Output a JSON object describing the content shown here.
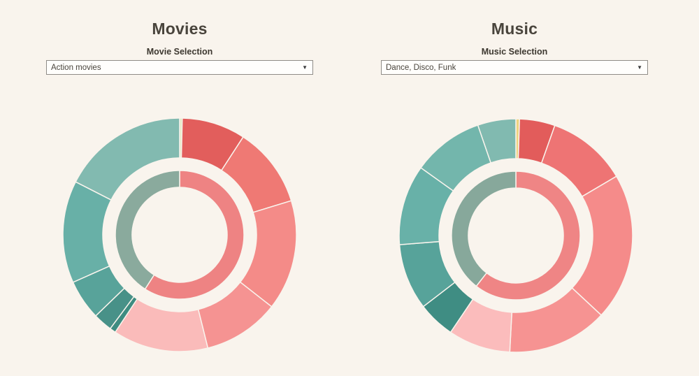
{
  "background_color": "#f9f4ed",
  "separator_color": "#f9f4ed",
  "panels": [
    {
      "title": "Movies",
      "selector_label": "Movie Selection",
      "selector_value": "Action movies",
      "dropdown_arrow_icon": "▼"
    },
    {
      "title": "Music",
      "selector_label": "Music Selection",
      "selector_value": "Dance, Disco, Funk",
      "dropdown_arrow_icon": "▼"
    }
  ],
  "chart_data": [
    {
      "type": "sunburst",
      "id": "movies",
      "title": "Movies",
      "selection": "Action movies",
      "angle_units": "degrees clockwise from 12 o'clock",
      "rings": {
        "outer": [
          {
            "name": "sliver-green",
            "start_deg": 0,
            "end_deg": 1.3,
            "share_pct": 0.4,
            "color": "#e3e8c0"
          },
          {
            "name": "dark-red",
            "start_deg": 1.3,
            "end_deg": 33,
            "share_pct": 8.8,
            "color": "#e25e5c"
          },
          {
            "name": "red",
            "start_deg": 33,
            "end_deg": 73,
            "share_pct": 11.1,
            "color": "#ef7974"
          },
          {
            "name": "salmon-a",
            "start_deg": 73,
            "end_deg": 128,
            "share_pct": 15.3,
            "color": "#f48b88"
          },
          {
            "name": "salmon-b",
            "start_deg": 128,
            "end_deg": 166,
            "share_pct": 10.6,
            "color": "#f59392"
          },
          {
            "name": "light-pink",
            "start_deg": 166,
            "end_deg": 213.5,
            "share_pct": 13.2,
            "color": "#fabbba"
          },
          {
            "name": "teal-sliver",
            "start_deg": 213.5,
            "end_deg": 216.5,
            "share_pct": 0.8,
            "color": "#3e8c81"
          },
          {
            "name": "dark-teal",
            "start_deg": 216.5,
            "end_deg": 226,
            "share_pct": 2.6,
            "color": "#489188"
          },
          {
            "name": "teal-a",
            "start_deg": 226,
            "end_deg": 246,
            "share_pct": 5.6,
            "color": "#58a39a"
          },
          {
            "name": "teal-b",
            "start_deg": 246,
            "end_deg": 297,
            "share_pct": 14.2,
            "color": "#68b0a7"
          },
          {
            "name": "sage-teal",
            "start_deg": 297,
            "end_deg": 360,
            "share_pct": 17.5,
            "color": "#82bab0"
          }
        ],
        "inner": [
          {
            "name": "pink-group",
            "start_deg": 0,
            "end_deg": 212.5,
            "share_pct": 59.0,
            "color": "#ee8383"
          },
          {
            "name": "teal-group",
            "start_deg": 212.5,
            "end_deg": 360,
            "share_pct": 41.0,
            "color": "#8aaa9d"
          }
        ]
      }
    },
    {
      "type": "sunburst",
      "id": "music",
      "title": "Music",
      "selection": "Dance, Disco, Funk",
      "angle_units": "degrees clockwise from 12 o'clock",
      "rings": {
        "outer": [
          {
            "name": "sliver-yellow",
            "start_deg": 0,
            "end_deg": 1.8,
            "share_pct": 0.5,
            "color": "#eed37f"
          },
          {
            "name": "dark-red",
            "start_deg": 1.8,
            "end_deg": 19.5,
            "share_pct": 4.9,
            "color": "#e25c5b"
          },
          {
            "name": "red",
            "start_deg": 19.5,
            "end_deg": 59.5,
            "share_pct": 11.1,
            "color": "#ee7474"
          },
          {
            "name": "salmon-a",
            "start_deg": 59.5,
            "end_deg": 133,
            "share_pct": 20.4,
            "color": "#f58b8a"
          },
          {
            "name": "salmon-b",
            "start_deg": 133,
            "end_deg": 183,
            "share_pct": 13.9,
            "color": "#f69392"
          },
          {
            "name": "light-pink",
            "start_deg": 183,
            "end_deg": 214,
            "share_pct": 8.6,
            "color": "#fbbcbc"
          },
          {
            "name": "dark-teal",
            "start_deg": 214,
            "end_deg": 232.5,
            "share_pct": 5.1,
            "color": "#3f8d83"
          },
          {
            "name": "teal-a",
            "start_deg": 232.5,
            "end_deg": 265.5,
            "share_pct": 9.2,
            "color": "#57a39a"
          },
          {
            "name": "teal-b",
            "start_deg": 265.5,
            "end_deg": 305.5,
            "share_pct": 11.1,
            "color": "#68b1a8"
          },
          {
            "name": "teal-c",
            "start_deg": 305.5,
            "end_deg": 341,
            "share_pct": 9.9,
            "color": "#73b6ac"
          },
          {
            "name": "sage-teal",
            "start_deg": 341,
            "end_deg": 360,
            "share_pct": 5.3,
            "color": "#81bab0"
          }
        ],
        "inner": [
          {
            "name": "pink-group",
            "start_deg": 0,
            "end_deg": 218,
            "share_pct": 60.6,
            "color": "#ef8585"
          },
          {
            "name": "teal-group",
            "start_deg": 218,
            "end_deg": 360,
            "share_pct": 39.4,
            "color": "#87a89b"
          }
        ]
      }
    }
  ]
}
